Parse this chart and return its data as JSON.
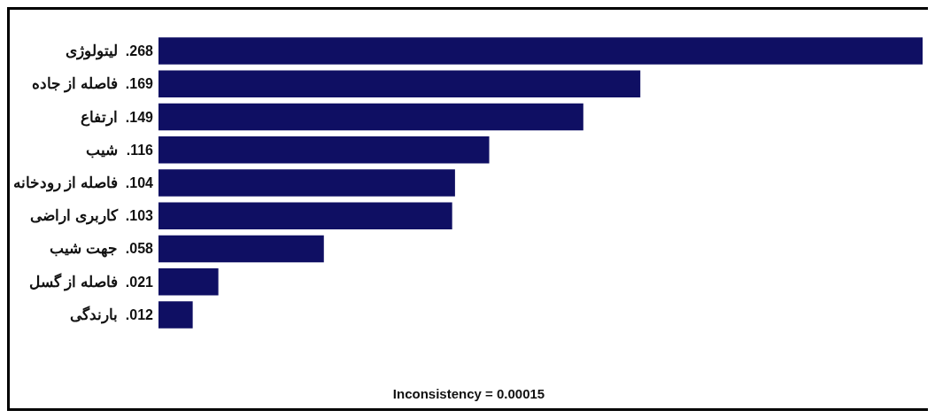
{
  "chart_data": {
    "type": "bar",
    "orientation": "horizontal",
    "categories": [
      "لیتولوژی",
      "فاصله از جاده",
      "ارتفاع",
      "شیب",
      "فاصله از رودخانه",
      "کاربری اراضی",
      "جهت شیب",
      "فاصله از گسل",
      "بارندگی"
    ],
    "values": [
      0.268,
      0.169,
      0.149,
      0.116,
      0.104,
      0.103,
      0.058,
      0.021,
      0.012
    ],
    "value_labels": [
      ".268",
      ".169",
      ".149",
      ".116",
      ".104",
      ".103",
      ".058",
      ".021",
      ".012"
    ],
    "color": "#0f0f63",
    "annotations": [
      "Inconsistency = 0.00015"
    ]
  }
}
